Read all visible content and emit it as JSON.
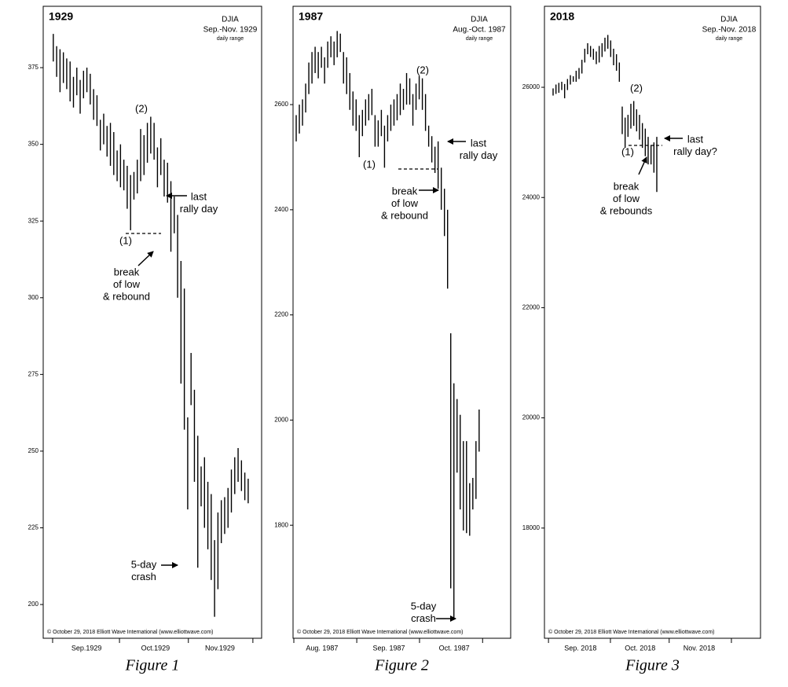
{
  "chart_data": [
    {
      "type": "range",
      "title": "1929",
      "index_name": "DJIA",
      "subtitle": "Sep.-Nov. 1929",
      "note": "daily range",
      "copyright": "© October 29, 2018 Elliott Wave International (www.elliottwave.com)",
      "caption": "Figure 1",
      "ylim": [
        189,
        395
      ],
      "yticks": [
        200,
        225,
        250,
        275,
        300,
        325,
        350,
        375
      ],
      "xlim": [
        -3,
        62
      ],
      "xticks": [
        -0.2,
        19.7,
        40.2,
        59.4
      ],
      "month_labels": [
        {
          "value": 9.9,
          "label": "Sep.1929"
        },
        {
          "value": 30.4,
          "label": "Oct.1929"
        },
        {
          "value": 49.6,
          "label": "Nov.1929"
        }
      ],
      "highs": [
        386,
        382,
        381,
        380,
        378,
        377,
        372,
        375,
        371,
        374,
        375,
        373,
        368,
        366,
        358,
        360,
        356,
        357,
        354,
        348,
        350,
        345,
        343,
        340,
        341,
        345,
        355,
        353,
        357,
        359,
        357,
        349,
        352,
        345,
        344,
        338,
        333,
        327,
        312,
        303,
        261,
        282,
        270,
        255,
        245,
        248,
        240,
        236,
        221,
        230,
        234,
        235,
        238,
        244,
        248,
        251,
        247,
        243,
        241
      ],
      "lows": [
        377,
        372,
        367,
        370,
        368,
        364,
        362,
        366,
        360,
        365,
        367,
        363,
        358,
        356,
        348,
        350,
        346,
        343,
        340,
        338,
        336,
        335,
        329,
        322,
        332,
        334,
        338,
        340,
        344,
        347,
        345,
        336,
        340,
        333,
        331,
        315,
        321,
        300,
        272,
        257,
        231,
        265,
        240,
        212,
        232,
        225,
        218,
        208,
        196,
        205,
        220,
        223,
        225,
        230,
        236,
        240,
        237,
        234,
        233
      ],
      "annotations": [
        {
          "lines": [
            "(2)"
          ]
        },
        {
          "lines": [
            "(1)"
          ]
        },
        {
          "lines": [
            "last",
            "rally day"
          ]
        },
        {
          "lines": [
            "break",
            "of low",
            "& rebound"
          ]
        },
        {
          "lines": [
            "5-day",
            "crash"
          ]
        }
      ]
    },
    {
      "type": "range",
      "title": "1987",
      "index_name": "DJIA",
      "subtitle": "Aug.-Oct. 1987",
      "note": "daily range",
      "copyright": "© October 29, 2018 Elliott Wave International (www.elliottwave.com)",
      "caption": "Figure 2",
      "ylim": [
        1585,
        2787
      ],
      "yticks": [
        1800,
        2000,
        2200,
        2400,
        2600
      ],
      "xlim": [
        -1,
        68
      ],
      "xticks": [
        -0.75,
        19.2,
        39.1,
        59.1
      ],
      "month_labels": [
        {
          "value": 8.2,
          "label": "Aug. 1987"
        },
        {
          "value": 29.4,
          "label": "Sep. 1987"
        },
        {
          "value": 50.1,
          "label": "Oct. 1987"
        }
      ],
      "highs": [
        2580,
        2600,
        2610,
        2640,
        2680,
        2700,
        2710,
        2700,
        2710,
        2690,
        2720,
        2730,
        2720,
        2740,
        2735,
        2700,
        2690,
        2660,
        2625,
        2610,
        2580,
        2590,
        2610,
        2620,
        2630,
        2580,
        2570,
        2590,
        2560,
        2580,
        2600,
        2610,
        2620,
        2640,
        2630,
        2660,
        2650,
        2620,
        2640,
        2655,
        2650,
        2620,
        2560,
        2540,
        2520,
        2530,
        2480,
        2440,
        2400,
        2165,
        2070,
        2040,
        2010,
        1960,
        1960,
        1880,
        1890,
        1960,
        2020
      ],
      "lows": [
        2530,
        2545,
        2560,
        2585,
        2620,
        2640,
        2660,
        2650,
        2670,
        2640,
        2670,
        2690,
        2675,
        2690,
        2700,
        2640,
        2620,
        2590,
        2560,
        2550,
        2500,
        2540,
        2560,
        2570,
        2580,
        2520,
        2520,
        2540,
        2480,
        2530,
        2550,
        2560,
        2570,
        2580,
        2590,
        2600,
        2600,
        2560,
        2590,
        2610,
        2590,
        2550,
        2520,
        2490,
        2470,
        2440,
        2400,
        2350,
        2250,
        1680,
        1620,
        1900,
        1830,
        1790,
        1785,
        1780,
        1830,
        1850,
        1940
      ],
      "annotations": [
        {
          "lines": [
            "(2)"
          ]
        },
        {
          "lines": [
            "(1)"
          ]
        },
        {
          "lines": [
            "last",
            "rally day"
          ]
        },
        {
          "lines": [
            "break",
            "of low",
            "& rebound"
          ]
        },
        {
          "lines": [
            "5-day",
            "crash"
          ]
        }
      ]
    },
    {
      "type": "range",
      "title": "2018",
      "index_name": "DJIA",
      "subtitle": "Sep.-Nov. 2018",
      "note": "daily range",
      "copyright": "© October 29, 2018 Elliott Wave International (www.elliottwave.com)",
      "caption": "Figure 3",
      "ylim": [
        16000,
        27470
      ],
      "yticks": [
        18000,
        20000,
        22000,
        24000,
        26000
      ],
      "xlim": [
        -3,
        72
      ],
      "xticks": [
        -1.6,
        19.9,
        40.3,
        61.9
      ],
      "month_labels": [
        {
          "value": 9.5,
          "label": "Sep. 2018"
        },
        {
          "value": 30.2,
          "label": "Oct. 2018"
        },
        {
          "value": 50.7,
          "label": "Nov. 2018"
        }
      ],
      "highs": [
        25980,
        26050,
        26080,
        26100,
        26060,
        26150,
        26220,
        26200,
        26300,
        26350,
        26500,
        26700,
        26800,
        26750,
        26700,
        26650,
        26750,
        26800,
        26900,
        26950,
        26850,
        26700,
        26600,
        26450,
        25650,
        25450,
        25500,
        25700,
        25750,
        25600,
        25500,
        25350,
        25250,
        25100,
        24950,
        25000,
        25100
      ],
      "lows": [
        25850,
        25880,
        25900,
        25950,
        25800,
        25950,
        26050,
        26100,
        26100,
        26150,
        26250,
        26450,
        26600,
        26550,
        26500,
        26420,
        26450,
        26550,
        26650,
        26700,
        26550,
        26400,
        26300,
        26100,
        25150,
        24900,
        25100,
        25250,
        25300,
        25200,
        25050,
        24900,
        24750,
        24600,
        24600,
        24450,
        24100
      ],
      "annotations": [
        {
          "lines": [
            "(2)"
          ]
        },
        {
          "lines": [
            "(1)"
          ]
        },
        {
          "lines": [
            "last",
            "rally day?"
          ]
        },
        {
          "lines": [
            "break",
            "of low",
            "& rebounds"
          ]
        }
      ]
    }
  ]
}
